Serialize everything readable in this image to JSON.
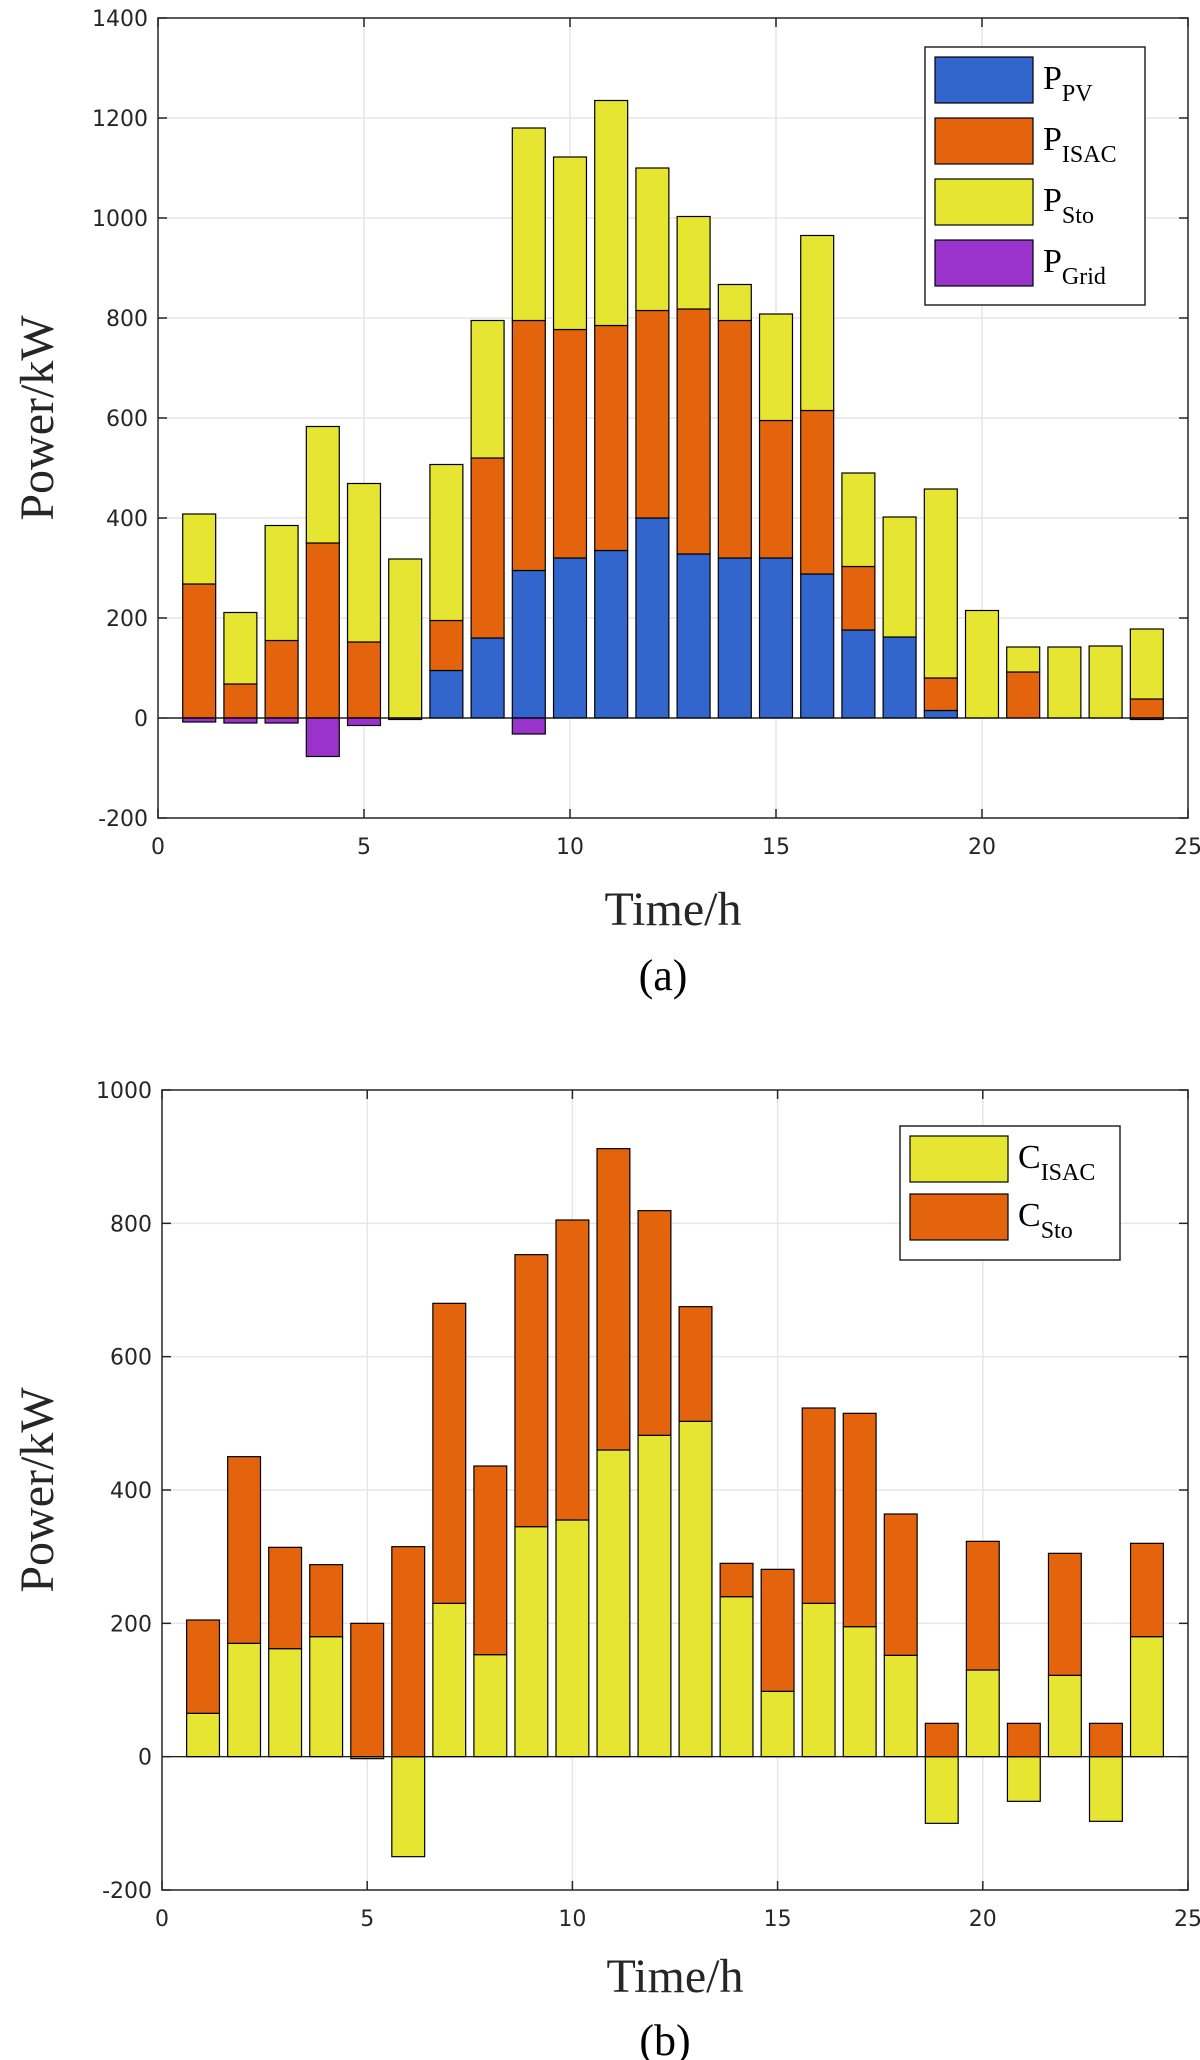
{
  "chart_data": [
    {
      "type": "bar",
      "stacked": true,
      "caption": "(a)",
      "xlabel": "Time/h",
      "ylabel": "Power/kW",
      "xlim": [
        0,
        25
      ],
      "ylim": [
        -200,
        1400
      ],
      "xticks": [
        0,
        5,
        10,
        15,
        20,
        25
      ],
      "yticks": [
        -200,
        0,
        200,
        400,
        600,
        800,
        1000,
        1200,
        1400
      ],
      "grid": true,
      "legend_position": "top-right",
      "x": [
        1,
        2,
        3,
        4,
        5,
        6,
        7,
        8,
        9,
        10,
        11,
        12,
        13,
        14,
        15,
        16,
        17,
        18,
        19,
        20,
        21,
        22,
        23,
        24
      ],
      "series": [
        {
          "name": "P",
          "sub": "PV",
          "color": "#3366cc",
          "values": [
            0,
            0,
            0,
            0,
            0,
            0,
            95,
            160,
            295,
            320,
            335,
            400,
            328,
            320,
            320,
            288,
            176,
            162,
            15,
            0,
            0,
            0,
            0,
            0
          ]
        },
        {
          "name": "P",
          "sub": "ISAC",
          "color": "#e4640d",
          "values": [
            268,
            68,
            155,
            350,
            152,
            0,
            100,
            360,
            500,
            457,
            450,
            415,
            490,
            475,
            275,
            327,
            127,
            0,
            65,
            0,
            92,
            0,
            0,
            38
          ]
        },
        {
          "name": "P",
          "sub": "Sto",
          "color": "#e6e632",
          "values": [
            140,
            143,
            230,
            233,
            317,
            318,
            312,
            275,
            385,
            345,
            450,
            285,
            185,
            72,
            213,
            350,
            187,
            240,
            378,
            215,
            50,
            142,
            144,
            140
          ]
        },
        {
          "name": "P",
          "sub": "Grid",
          "color": "#9933cc",
          "values": [
            -8,
            -10,
            -10,
            -77,
            -15,
            -3,
            0,
            0,
            -32,
            0,
            0,
            0,
            0,
            0,
            0,
            0,
            0,
            0,
            0,
            0,
            0,
            0,
            0,
            -3
          ]
        }
      ]
    },
    {
      "type": "bar",
      "stacked": true,
      "caption": "(b)",
      "xlabel": "Time/h",
      "ylabel": "Power/kW",
      "xlim": [
        0,
        25
      ],
      "ylim": [
        -200,
        1000
      ],
      "xticks": [
        0,
        5,
        10,
        15,
        20,
        25
      ],
      "yticks": [
        -200,
        0,
        200,
        400,
        600,
        800,
        1000
      ],
      "grid": true,
      "legend_position": "top-right",
      "x": [
        1,
        2,
        3,
        4,
        5,
        6,
        7,
        8,
        9,
        10,
        11,
        12,
        13,
        14,
        15,
        16,
        17,
        18,
        19,
        20,
        21,
        22,
        23,
        24
      ],
      "series": [
        {
          "name": "C",
          "sub": "ISAC",
          "color": "#e6e632",
          "values": [
            65,
            170,
            162,
            180,
            -3,
            -150,
            230,
            153,
            345,
            355,
            460,
            482,
            503,
            240,
            98,
            230,
            195,
            152,
            -100,
            130,
            -67,
            122,
            -97,
            180
          ]
        },
        {
          "name": "C",
          "sub": "Sto",
          "color": "#e4640d",
          "values": [
            140,
            280,
            152,
            108,
            200,
            315,
            450,
            283,
            408,
            450,
            452,
            337,
            172,
            50,
            183,
            293,
            320,
            212,
            50,
            193,
            50,
            183,
            50,
            140
          ]
        }
      ]
    }
  ]
}
